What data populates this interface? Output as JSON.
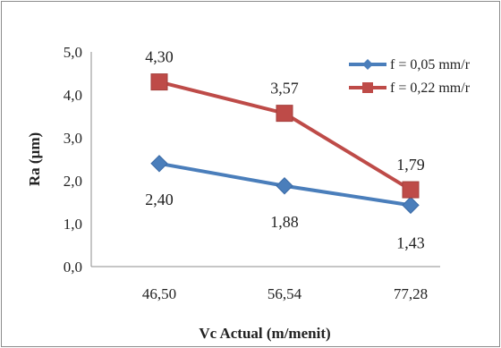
{
  "chart_data": {
    "type": "line",
    "categories": [
      "46,50",
      "56,54",
      "77,28"
    ],
    "xlabel": "Vc Actual (m/menit)",
    "ylabel": "Ra (µm)",
    "ylim": [
      0,
      5
    ],
    "yticks": [
      "0,0",
      "1,0",
      "2,0",
      "3,0",
      "4,0",
      "5,0"
    ],
    "grid": false,
    "legend_position": "right",
    "series": [
      {
        "name": "f = 0,05 mm/r",
        "values": [
          2.4,
          1.88,
          1.43
        ],
        "labels": [
          "2,40",
          "1,88",
          "1,43"
        ],
        "color": "#4a7ebb",
        "marker": "diamond"
      },
      {
        "name": "f = 0,22 mm/r",
        "values": [
          4.3,
          3.57,
          1.79
        ],
        "labels": [
          "4,30",
          "3,57",
          "1,79"
        ],
        "color": "#be4b48",
        "marker": "square"
      }
    ]
  }
}
